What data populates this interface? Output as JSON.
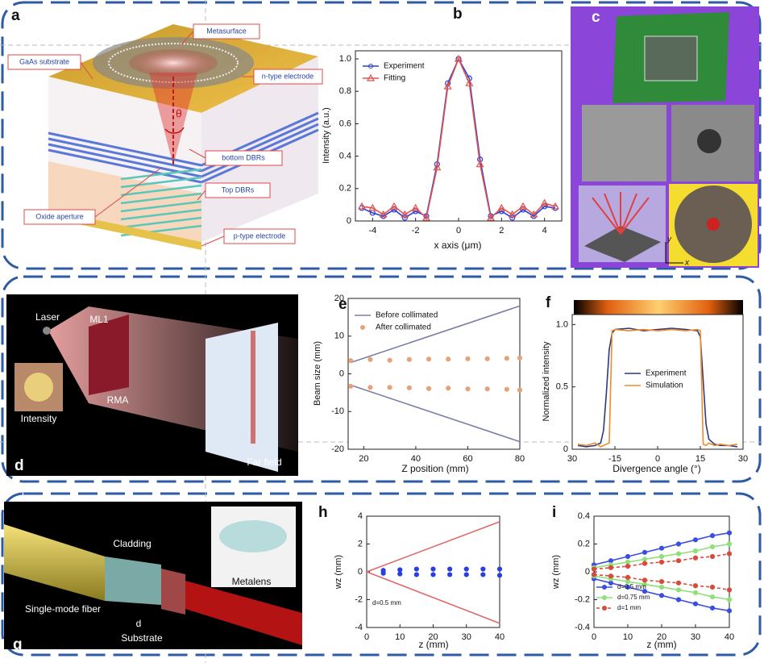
{
  "panels": {
    "a": {
      "letter": "a",
      "labels": [
        "Metasurface",
        "GaAs substrate",
        "n-type electrode",
        "θ",
        "bottom  DBRs",
        "Top DBRs",
        "Oxide aperture",
        "p-type electrode"
      ]
    },
    "c": {
      "letter": "c",
      "labels": [
        "y",
        "x"
      ]
    },
    "d": {
      "letter": "d",
      "labels": [
        "Laser",
        "ML1",
        "Intensity",
        "RMA",
        "Far field"
      ]
    },
    "g": {
      "letter": "g",
      "labels": [
        "Cladding",
        "Metalens",
        "Single-mode fiber",
        "d",
        "Substrate"
      ]
    }
  },
  "chart_data": [
    {
      "type": "line",
      "panel": "b",
      "xlabel": "x axis (μm)",
      "ylabel": "Intensity  (a.u.)",
      "xlim": [
        -4.8,
        4.8
      ],
      "ylim": [
        0,
        1.05
      ],
      "xticks": [
        -4,
        -2,
        0,
        2,
        4
      ],
      "yticks": [
        0,
        0.2,
        0.4,
        0.6,
        0.8,
        {
          "value": 1,
          "label": "1.0"
        }
      ],
      "x": [
        -4.5,
        -4,
        -3.5,
        -3,
        -2.5,
        -2,
        -1.5,
        -1,
        -0.5,
        0,
        0.5,
        1,
        1.5,
        2,
        2.5,
        3,
        3.5,
        4,
        4.5
      ],
      "series": [
        {
          "name": "Experiment",
          "color": "#2c3fd6",
          "marker": "circle",
          "values": [
            0.08,
            0.05,
            0.03,
            0.07,
            0.02,
            0.06,
            0.03,
            0.35,
            0.85,
            1.0,
            0.88,
            0.38,
            0.03,
            0.06,
            0.02,
            0.07,
            0.03,
            0.09,
            0.08
          ]
        },
        {
          "name": "Fitting",
          "color": "#e0524f",
          "marker": "triangle",
          "values": [
            0.09,
            0.08,
            0.04,
            0.09,
            0.04,
            0.08,
            0.02,
            0.33,
            0.83,
            1.0,
            0.85,
            0.35,
            0.02,
            0.08,
            0.04,
            0.09,
            0.04,
            0.11,
            0.09
          ]
        }
      ]
    },
    {
      "type": "line",
      "panel": "e",
      "xlabel": "Z position (mm)",
      "ylabel": "Beam size  (mm)",
      "xlim": [
        14,
        80
      ],
      "ylim": [
        -20,
        20
      ],
      "xticks": [
        20,
        40,
        60,
        80
      ],
      "yticks": [
        -20,
        -10,
        0,
        10,
        20
      ],
      "series": [
        {
          "name": "Before collimated",
          "color": "#7a7fa8",
          "x": [
            15,
            80
          ],
          "values": [
            3,
            18
          ],
          "lower": [
            -3,
            -18
          ]
        },
        {
          "name": "After collimated",
          "color": "#e8a27a",
          "marker": "circle",
          "style": "dots",
          "x": [
            15,
            22.5,
            30,
            37.5,
            45,
            52.5,
            60,
            67.5,
            75,
            80
          ],
          "values": [
            3.5,
            3.8,
            3.6,
            3.8,
            3.9,
            3.9,
            4.0,
            4.0,
            4.1,
            4.2
          ],
          "lower": [
            -3.3,
            -3.6,
            -3.6,
            -3.7,
            -3.9,
            -3.8,
            -4.0,
            -4.0,
            -4.1,
            -4.3
          ]
        }
      ]
    },
    {
      "type": "line",
      "panel": "f",
      "xlabel": "Divergence angle  (°)",
      "ylabel": "Normalized intensity",
      "xlim": [
        -30,
        30
      ],
      "ylim": [
        0,
        1.08
      ],
      "xticks": [
        {
          "value": -30,
          "label": "30"
        },
        -15,
        0,
        15,
        30
      ],
      "yticks": [
        0,
        0.5,
        {
          "value": 1,
          "label": "1.0"
        }
      ],
      "x": [
        -28,
        -25,
        -22,
        -20,
        -19,
        -18,
        -17,
        -16,
        -15,
        -10,
        -5,
        0,
        5,
        10,
        14,
        15,
        16,
        17,
        18,
        20,
        22,
        25,
        28
      ],
      "series": [
        {
          "name": "Experiment",
          "color": "#2b3a7a",
          "values": [
            0.03,
            0.02,
            0.03,
            0.05,
            0.15,
            0.45,
            0.8,
            0.93,
            0.96,
            0.97,
            0.95,
            0.96,
            0.97,
            0.96,
            0.95,
            0.9,
            0.55,
            0.2,
            0.08,
            0.04,
            0.03,
            0.03,
            0.02
          ]
        },
        {
          "name": "Simulation",
          "color": "#f08a2a",
          "values": [
            0.04,
            0.03,
            0.05,
            0.02,
            0.03,
            0.04,
            0.05,
            0.95,
            0.96,
            0.95,
            0.96,
            0.95,
            0.96,
            0.95,
            0.96,
            0.95,
            0.04,
            0.03,
            0.05,
            0.03,
            0.04,
            0.03,
            0.04
          ]
        }
      ]
    },
    {
      "type": "line",
      "panel": "h",
      "xlabel": "z (mm)",
      "ylabel": "wz (mm)",
      "annotation": "d=0.5 mm",
      "xlim": [
        0,
        40
      ],
      "ylim": [
        -4,
        4
      ],
      "xticks": [
        0,
        10,
        20,
        30,
        40
      ],
      "yticks": [
        -4,
        -2,
        0,
        2,
        4
      ],
      "series": [
        {
          "color": "#e06a6a",
          "x": [
            0,
            40
          ],
          "values": [
            0,
            3.6
          ],
          "lower": [
            0,
            -3.7
          ]
        },
        {
          "color": "#2a3fe0",
          "marker": "circle",
          "style": "dots",
          "x": [
            5,
            10,
            15,
            20,
            25,
            30,
            35,
            40
          ],
          "values": [
            0.1,
            0.15,
            0.2,
            0.2,
            0.2,
            0.2,
            0.2,
            0.2
          ],
          "lower": [
            -0.1,
            -0.15,
            -0.2,
            -0.2,
            -0.2,
            -0.2,
            -0.2,
            -0.25
          ]
        }
      ]
    },
    {
      "type": "line",
      "panel": "i",
      "xlabel": "z (mm)",
      "ylabel": "wz (mm)",
      "xlim": [
        0,
        40
      ],
      "ylim": [
        -0.4,
        0.4
      ],
      "xticks": [
        0,
        10,
        20,
        30,
        40
      ],
      "yticks": [
        -0.4,
        -0.2,
        0,
        0.2,
        0.4
      ],
      "x": [
        0,
        5,
        10,
        15,
        20,
        25,
        30,
        35,
        40
      ],
      "series": [
        {
          "name": "d=0.5 mm",
          "color": "#3a4fe0",
          "marker": "circle",
          "values": [
            0.05,
            0.08,
            0.11,
            0.14,
            0.17,
            0.2,
            0.23,
            0.26,
            0.28
          ],
          "lower": [
            -0.05,
            -0.08,
            -0.11,
            -0.14,
            -0.17,
            -0.2,
            -0.23,
            -0.26,
            -0.28
          ]
        },
        {
          "name": "d=0.75 mm",
          "color": "#8fe07a",
          "marker": "circle",
          "values": [
            0.03,
            0.05,
            0.07,
            0.09,
            0.11,
            0.13,
            0.15,
            0.18,
            0.2
          ],
          "lower": [
            -0.03,
            -0.05,
            -0.07,
            -0.09,
            -0.11,
            -0.13,
            -0.15,
            -0.18,
            -0.2
          ]
        },
        {
          "name": "d=1 mm",
          "color": "#d94a3a",
          "marker": "circle",
          "dash": true,
          "values": [
            0.02,
            0.03,
            0.04,
            0.06,
            0.07,
            0.08,
            0.1,
            0.11,
            0.13
          ],
          "lower": [
            -0.02,
            -0.03,
            -0.04,
            -0.06,
            -0.07,
            -0.08,
            -0.1,
            -0.11,
            -0.13
          ]
        }
      ]
    }
  ]
}
